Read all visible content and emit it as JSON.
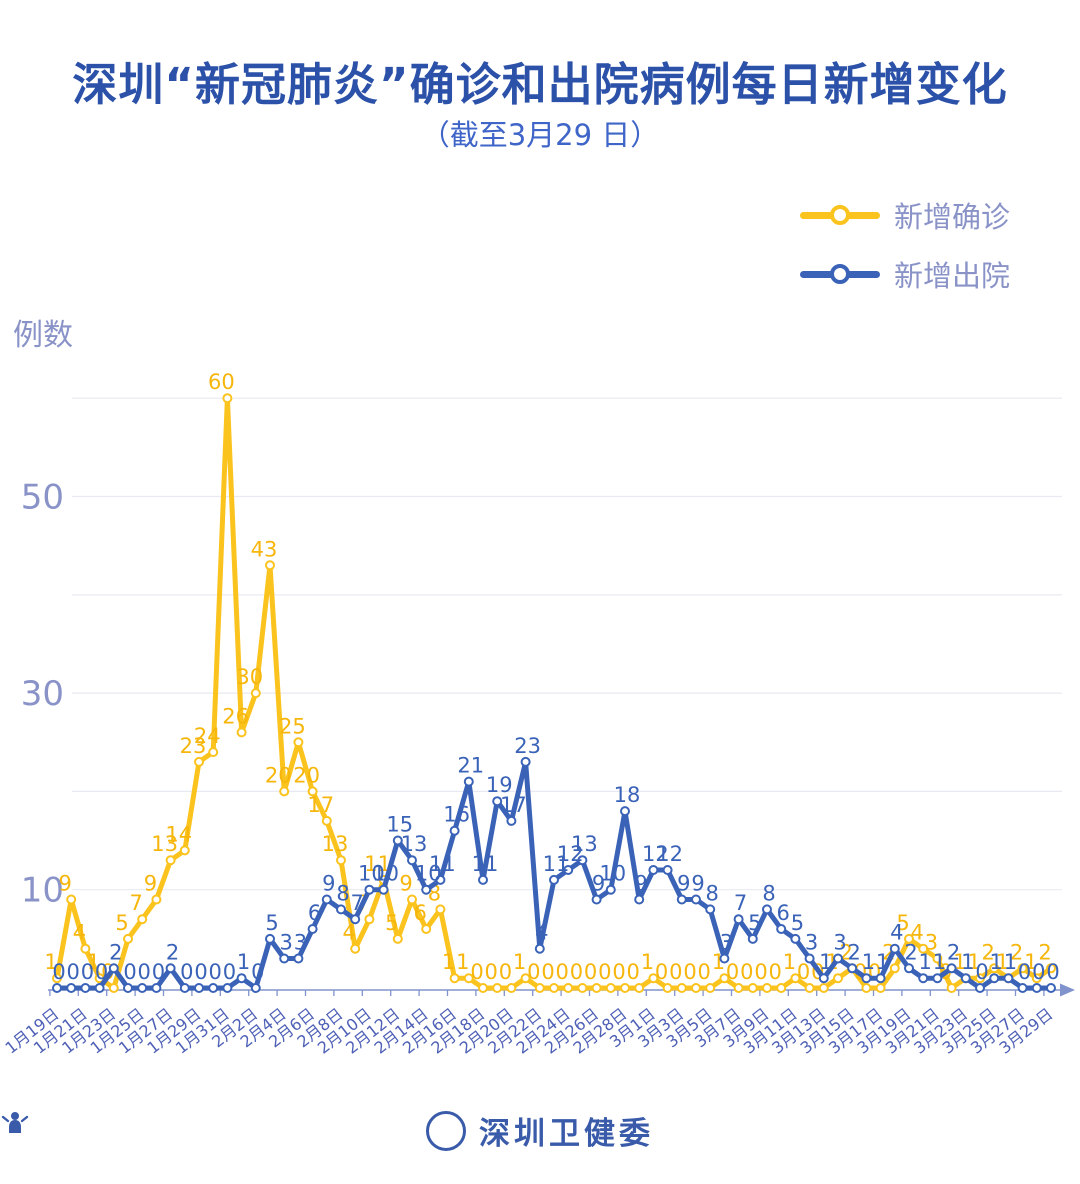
{
  "header": {
    "title": "深圳“新冠肺炎”确诊和出院病例每日新增变化",
    "subtitle": "（截至3月29 日）"
  },
  "legend": {
    "confirmed": {
      "label": "新增确诊",
      "color": "#FBC31D"
    },
    "discharged": {
      "label": "新增出院",
      "color": "#3A63B8"
    }
  },
  "y_axis": {
    "name": "例数"
  },
  "footer": {
    "org": "深圳卫健委"
  },
  "colors": {
    "grid": "#E8E9F2",
    "axis_line": "#8193CC",
    "axis_text": "#8A93C8",
    "date_text": "#4E60B6",
    "confirmed": "#FBC31D",
    "confirmed_label": "#F6B60C",
    "discharged": "#3A63B8",
    "title_blue": "#2B51A8"
  },
  "chart_data": {
    "type": "line",
    "title": "深圳“新冠肺炎”确诊和出院病例每日新增变化",
    "subtitle": "截至3月29日",
    "ylabel": "例数",
    "ylim": [
      0,
      62
    ],
    "y_gridlines": [
      10,
      20,
      30,
      40,
      50,
      60
    ],
    "y_tick_labels": [
      10,
      30,
      50
    ],
    "legend_position": "top-right",
    "x_tick_label_step": 2,
    "categories": [
      "1月19日",
      "1月20日",
      "1月21日",
      "1月22日",
      "1月23日",
      "1月24日",
      "1月25日",
      "1月26日",
      "1月27日",
      "1月28日",
      "1月29日",
      "1月30日",
      "1月31日",
      "2月1日",
      "2月2日",
      "2月3日",
      "2月4日",
      "2月5日",
      "2月6日",
      "2月7日",
      "2月8日",
      "2月9日",
      "2月10日",
      "2月11日",
      "2月12日",
      "2月13日",
      "2月14日",
      "2月15日",
      "2月16日",
      "2月17日",
      "2月18日",
      "2月19日",
      "2月20日",
      "2月21日",
      "2月22日",
      "2月23日",
      "2月24日",
      "2月25日",
      "2月26日",
      "2月27日",
      "2月28日",
      "2月29日",
      "3月1日",
      "3月2日",
      "3月3日",
      "3月4日",
      "3月5日",
      "3月6日",
      "3月7日",
      "3月8日",
      "3月9日",
      "3月10日",
      "3月11日",
      "3月12日",
      "3月13日",
      "3月14日",
      "3月15日",
      "3月16日",
      "3月17日",
      "3月18日",
      "3月19日",
      "3月20日",
      "3月21日",
      "3月22日",
      "3月23日",
      "3月24日",
      "3月25日",
      "3月26日",
      "3月27日",
      "3月28日",
      "3月29日"
    ],
    "series": [
      {
        "name": "新增确诊",
        "color": "#FBC31D",
        "values": [
          1,
          9,
          4,
          1,
          0,
          5,
          7,
          9,
          13,
          14,
          23,
          24,
          60,
          26,
          30,
          43,
          20,
          25,
          20,
          17,
          13,
          4,
          7,
          11,
          5,
          9,
          6,
          8,
          1,
          1,
          0,
          0,
          0,
          1,
          0,
          0,
          0,
          0,
          0,
          0,
          0,
          0,
          1,
          0,
          0,
          0,
          0,
          1,
          0,
          0,
          0,
          0,
          1,
          0,
          0,
          1,
          2,
          0,
          0,
          2,
          5,
          4,
          3,
          0,
          1,
          1,
          2,
          1,
          2,
          1,
          2
        ]
      },
      {
        "name": "新增出院",
        "color": "#3A63B8",
        "values": [
          0,
          0,
          0,
          0,
          2,
          0,
          0,
          0,
          2,
          0,
          0,
          0,
          0,
          1,
          0,
          5,
          3,
          3,
          6,
          9,
          8,
          7,
          10,
          10,
          15,
          13,
          10,
          11,
          16,
          21,
          11,
          19,
          17,
          23,
          4,
          11,
          12,
          13,
          9,
          10,
          18,
          9,
          12,
          12,
          9,
          9,
          8,
          3,
          7,
          5,
          8,
          6,
          5,
          3,
          1,
          3,
          2,
          1,
          1,
          4,
          2,
          1,
          1,
          2,
          1,
          0,
          1,
          1,
          0,
          0,
          0
        ]
      }
    ]
  }
}
